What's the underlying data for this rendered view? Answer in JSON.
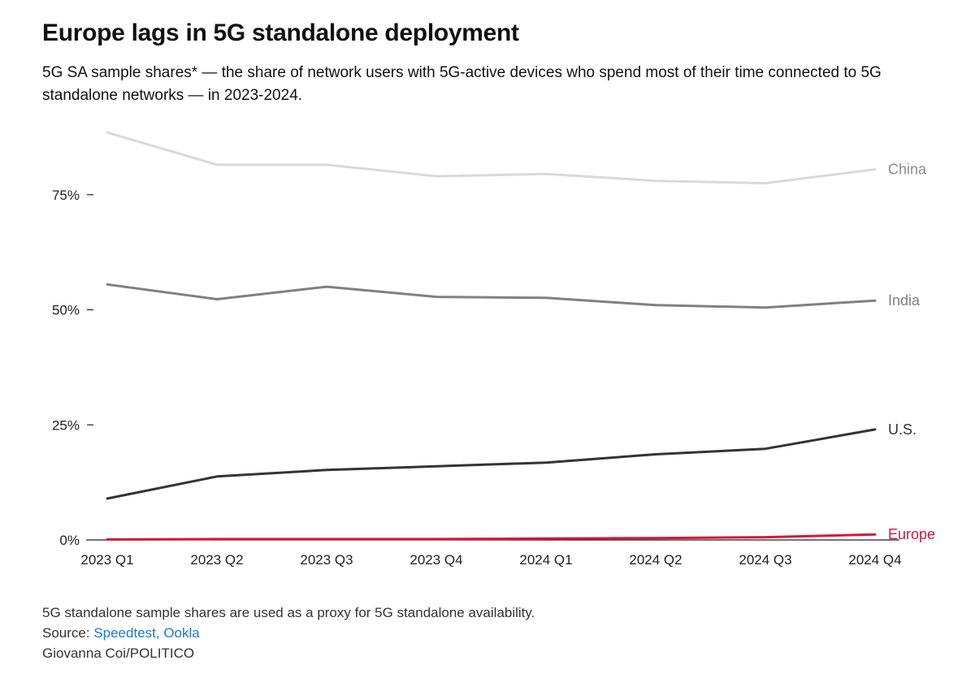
{
  "title": "Europe lags in 5G standalone deployment",
  "subtitle": "5G SA sample shares* — the share of network users with 5G-active devices who spend most of their time connected to 5G standalone networks — in 2023-2024.",
  "notes": {
    "footnote": "5G standalone sample shares are used as a proxy for 5G standalone availability.",
    "source_prefix": "Source: ",
    "source_link": "Speedtest, Ookla",
    "credit": "Giovanna Coi/POLITICO"
  },
  "chart_data": {
    "type": "line",
    "categories": [
      "2023 Q1",
      "2023 Q2",
      "2023 Q3",
      "2023 Q4",
      "2024 Q1",
      "2024 Q2",
      "2024 Q3",
      "2024 Q4"
    ],
    "ylim": [
      0,
      90
    ],
    "yticks": [
      0,
      25,
      50,
      75
    ],
    "ytick_labels": [
      "0%",
      "25%",
      "50%",
      "75%"
    ],
    "grid": false,
    "series": [
      {
        "name": "China",
        "color": "#d9d9d9",
        "values": [
          88.5,
          81.5,
          81.5,
          79.0,
          79.5,
          78.0,
          77.5,
          80.5
        ]
      },
      {
        "name": "India",
        "color": "#808080",
        "values": [
          55.5,
          52.3,
          55.0,
          52.8,
          52.6,
          51.0,
          50.5,
          52.0
        ]
      },
      {
        "name": "U.S.",
        "color": "#333333",
        "values": [
          9.0,
          13.8,
          15.2,
          16.0,
          16.8,
          18.6,
          19.8,
          24.0
        ]
      },
      {
        "name": "Europe",
        "color": "#d6163b",
        "values": [
          0.1,
          0.2,
          0.2,
          0.2,
          0.3,
          0.4,
          0.6,
          1.2
        ]
      }
    ]
  }
}
